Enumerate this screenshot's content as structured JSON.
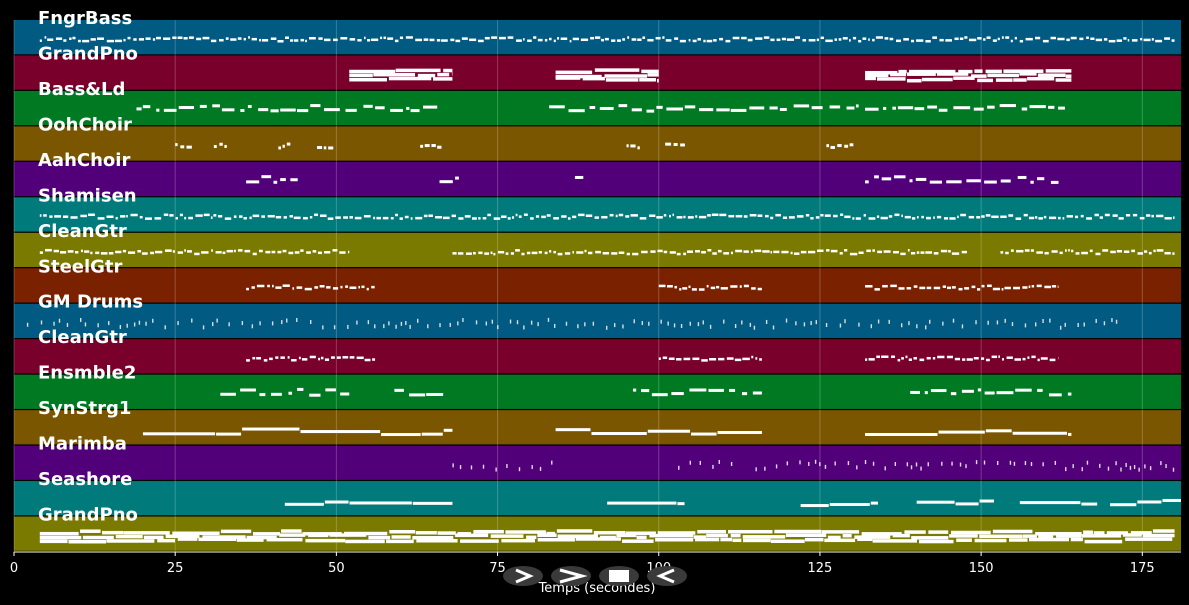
{
  "chart_data": {
    "type": "piano-roll",
    "xlabel": "Temps (secondes)",
    "xlim": [
      0,
      181
    ],
    "xticks": [
      0,
      25,
      50,
      75,
      100,
      125,
      150,
      175
    ],
    "grid": true,
    "tracks": [
      {
        "name": "FngrBass",
        "color": "#005a82",
        "style": "dense",
        "segments": [
          [
            4,
            180
          ]
        ]
      },
      {
        "name": "GrandPno",
        "color": "#78002a",
        "style": "block",
        "segments": [
          [
            52,
            68
          ],
          [
            84,
            100
          ],
          [
            132,
            164
          ]
        ]
      },
      {
        "name": "Bass&Ld",
        "color": "#007a22",
        "style": "dash",
        "segments": [
          [
            19,
            66
          ],
          [
            83,
            131
          ],
          [
            132,
            163
          ]
        ]
      },
      {
        "name": "OohChoir",
        "color": "#7a5600",
        "style": "sparse",
        "segments": [
          [
            25,
            27
          ],
          [
            31,
            33
          ],
          [
            41,
            43
          ],
          [
            47,
            49
          ],
          [
            63,
            66
          ],
          [
            95,
            97
          ],
          [
            101,
            104
          ],
          [
            126,
            130
          ]
        ]
      },
      {
        "name": "AahChoir",
        "color": "#52007a",
        "style": "dash",
        "segments": [
          [
            36,
            44
          ],
          [
            66,
            69
          ],
          [
            87,
            89
          ],
          [
            132,
            162
          ]
        ]
      },
      {
        "name": "Shamisen",
        "color": "#007a7a",
        "style": "dense",
        "segments": [
          [
            4,
            180
          ]
        ]
      },
      {
        "name": "CleanGtr",
        "color": "#7a7a00",
        "style": "dense",
        "segments": [
          [
            4,
            52
          ],
          [
            68,
            148
          ],
          [
            153,
            180
          ]
        ]
      },
      {
        "name": "SteelGtr",
        "color": "#7a2200",
        "style": "dense",
        "segments": [
          [
            36,
            56
          ],
          [
            100,
            116
          ],
          [
            132,
            162
          ]
        ]
      },
      {
        "name": "GM Drums",
        "color": "#005a82",
        "style": "ticks",
        "segments": [
          [
            2,
            172
          ]
        ]
      },
      {
        "name": "CleanGtr",
        "color": "#78002a",
        "style": "dense",
        "segments": [
          [
            36,
            56
          ],
          [
            100,
            116
          ],
          [
            132,
            162
          ]
        ]
      },
      {
        "name": "Ensmble2",
        "color": "#007a22",
        "style": "dash",
        "segments": [
          [
            32,
            52
          ],
          [
            59,
            67
          ],
          [
            96,
            116
          ],
          [
            139,
            164
          ]
        ]
      },
      {
        "name": "SynStrg1",
        "color": "#7a5600",
        "style": "long",
        "segments": [
          [
            20,
            68
          ],
          [
            84,
            116
          ],
          [
            132,
            164
          ]
        ]
      },
      {
        "name": "Marimba",
        "color": "#52007a",
        "style": "ticks",
        "segments": [
          [
            68,
            84
          ],
          [
            103,
            112
          ],
          [
            115,
            180
          ]
        ]
      },
      {
        "name": "Seashore",
        "color": "#007a7a",
        "style": "long",
        "segments": [
          [
            42,
            68
          ],
          [
            92,
            104
          ],
          [
            122,
            134
          ],
          [
            140,
            152
          ],
          [
            156,
            168
          ],
          [
            170,
            181
          ]
        ]
      },
      {
        "name": "GrandPno",
        "color": "#7a7a00",
        "style": "block",
        "segments": [
          [
            4,
            180
          ]
        ]
      }
    ]
  },
  "controls": {
    "play": "play-icon",
    "next": "next-icon",
    "stop": "stop-icon",
    "prev": "prev-icon"
  }
}
